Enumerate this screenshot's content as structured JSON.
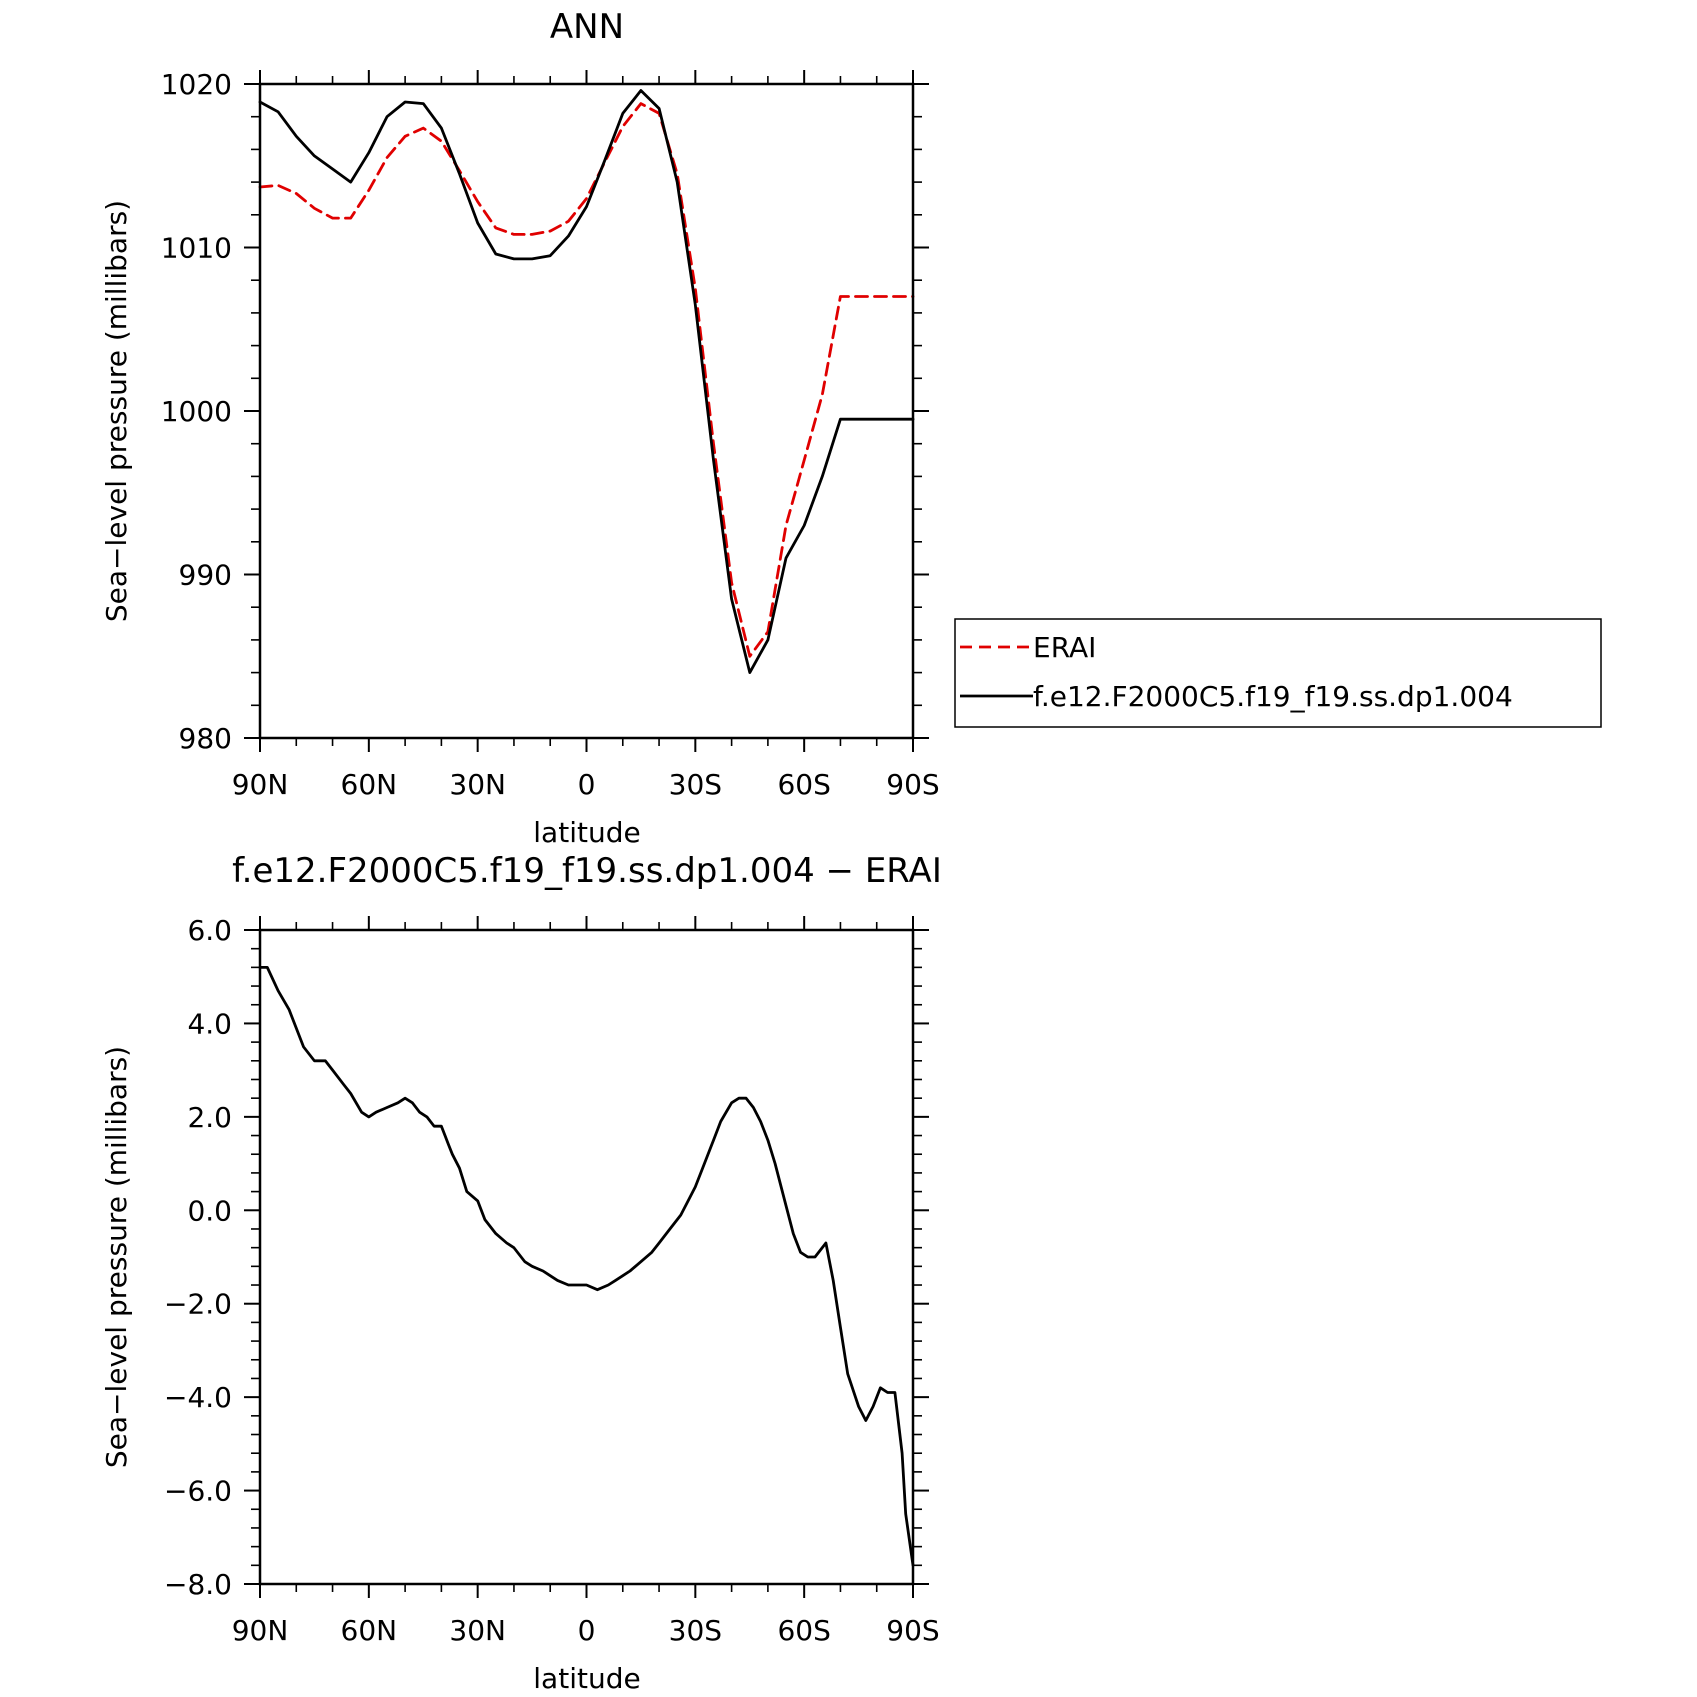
{
  "chart_data": [
    {
      "type": "line",
      "title": "ANN",
      "xlabel": "latitude",
      "ylabel": "Sea−level pressure (millibars)",
      "xlim": [
        90,
        -90
      ],
      "ylim": [
        980,
        1020
      ],
      "xticks": [
        90,
        60,
        30,
        0,
        -30,
        -60,
        -90
      ],
      "xticklabels": [
        "90N",
        "60N",
        "30N",
        "0",
        "30S",
        "60S",
        "90S"
      ],
      "yticks": [
        980,
        990,
        1000,
        1010,
        1020
      ],
      "yticklabels": [
        "980",
        "990",
        "1000",
        "1010",
        "1020"
      ],
      "legend": {
        "position": "right",
        "entries": [
          "ERAI",
          "f.e12.F2000C5.f19_f19.ss.dp1.004"
        ]
      },
      "series": [
        {
          "name": "ERAI",
          "color": "#e00000",
          "dash": "dashed",
          "x": [
            90,
            85,
            80,
            75,
            70,
            65,
            60,
            55,
            50,
            45,
            40,
            35,
            30,
            25,
            20,
            15,
            10,
            5,
            0,
            -5,
            -10,
            -15,
            -20,
            -25,
            -30,
            -35,
            -40,
            -45,
            -50,
            -55,
            -60,
            -65,
            -70,
            -75,
            -80,
            -85,
            -90
          ],
          "y": [
            1013.7,
            1013.8,
            1013.3,
            1012.4,
            1011.8,
            1011.8,
            1013.5,
            1015.5,
            1016.8,
            1017.3,
            1016.5,
            1014.7,
            1012.8,
            1011.2,
            1010.8,
            1010.8,
            1011.0,
            1011.6,
            1013.0,
            1015.2,
            1017.4,
            1018.8,
            1018.2,
            1014.5,
            1007.5,
            998.0,
            989.5,
            985.0,
            986.5,
            993.0,
            997.0,
            1001.0,
            1007.0,
            1007.0,
            1007.0,
            1007.0,
            1007.0
          ]
        },
        {
          "name": "f.e12.F2000C5.f19_f19.ss.dp1.004",
          "color": "#000000",
          "dash": "solid",
          "x": [
            90,
            85,
            80,
            75,
            70,
            65,
            60,
            55,
            50,
            45,
            40,
            35,
            30,
            25,
            20,
            15,
            10,
            5,
            0,
            -5,
            -10,
            -15,
            -20,
            -25,
            -30,
            -35,
            -40,
            -45,
            -50,
            -55,
            -60,
            -65,
            -70,
            -75,
            -80,
            -85,
            -90
          ],
          "y": [
            1018.9,
            1018.3,
            1016.8,
            1015.6,
            1014.8,
            1014.0,
            1015.8,
            1018.0,
            1018.9,
            1018.8,
            1017.3,
            1014.5,
            1011.5,
            1009.6,
            1009.3,
            1009.3,
            1009.5,
            1010.7,
            1012.5,
            1015.3,
            1018.2,
            1019.6,
            1018.5,
            1014.0,
            1006.5,
            997.0,
            988.5,
            984.0,
            986.0,
            991.0,
            993.0,
            996.0,
            999.5,
            999.5,
            999.5,
            999.5,
            999.5
          ]
        }
      ]
    },
    {
      "type": "line",
      "title": "f.e12.F2000C5.f19_f19.ss.dp1.004 − ERAI",
      "xlabel": "latitude",
      "ylabel": "Sea−level pressure (millibars)",
      "xlim": [
        90,
        -90
      ],
      "ylim": [
        -8.0,
        6.0
      ],
      "xticks": [
        90,
        60,
        30,
        0,
        -30,
        -60,
        -90
      ],
      "xticklabels": [
        "90N",
        "60N",
        "30N",
        "0",
        "30S",
        "60S",
        "90S"
      ],
      "yticks": [
        -8.0,
        -6.0,
        -4.0,
        -2.0,
        0.0,
        2.0,
        4.0,
        6.0
      ],
      "yticklabels": [
        "−8.0",
        "−6.0",
        "−4.0",
        "−2.0",
        "0.0",
        "2.0",
        "4.0",
        "6.0"
      ],
      "series": [
        {
          "color": "#000000",
          "dash": "solid",
          "x": [
            90,
            88,
            85,
            82,
            78,
            75,
            72,
            70,
            67,
            65,
            62,
            60,
            58,
            55,
            52,
            50,
            48,
            46,
            44,
            42,
            40,
            39,
            38,
            37,
            35,
            33,
            30,
            28,
            25,
            22,
            20,
            17,
            15,
            12,
            10,
            8,
            5,
            3,
            0,
            -3,
            -6,
            -8,
            -10,
            -12,
            -15,
            -18,
            -20,
            -23,
            -26,
            -28,
            -30,
            -32,
            -35,
            -37,
            -40,
            -42,
            -44,
            -46,
            -48,
            -50,
            -52,
            -55,
            -57,
            -59,
            -61,
            -63,
            -66,
            -68,
            -70,
            -72,
            -75,
            -77,
            -79,
            -81,
            -83,
            -85,
            -87,
            -88,
            -90
          ],
          "y": [
            5.2,
            5.2,
            4.7,
            4.3,
            3.5,
            3.2,
            3.2,
            3.0,
            2.7,
            2.5,
            2.1,
            2.0,
            2.1,
            2.2,
            2.3,
            2.4,
            2.3,
            2.1,
            2.0,
            1.8,
            1.8,
            1.6,
            1.4,
            1.2,
            0.9,
            0.4,
            0.2,
            -0.2,
            -0.5,
            -0.7,
            -0.8,
            -1.1,
            -1.2,
            -1.3,
            -1.4,
            -1.5,
            -1.6,
            -1.6,
            -1.6,
            -1.7,
            -1.6,
            -1.5,
            -1.4,
            -1.3,
            -1.1,
            -0.9,
            -0.7,
            -0.4,
            -0.1,
            0.2,
            0.5,
            0.9,
            1.5,
            1.9,
            2.3,
            2.4,
            2.4,
            2.2,
            1.9,
            1.5,
            1.0,
            0.1,
            -0.5,
            -0.9,
            -1.0,
            -1.0,
            -0.7,
            -1.5,
            -2.5,
            -3.5,
            -4.2,
            -4.5,
            -4.2,
            -3.8,
            -3.9,
            -3.9,
            -5.2,
            -6.5,
            -7.6
          ]
        }
      ]
    }
  ]
}
